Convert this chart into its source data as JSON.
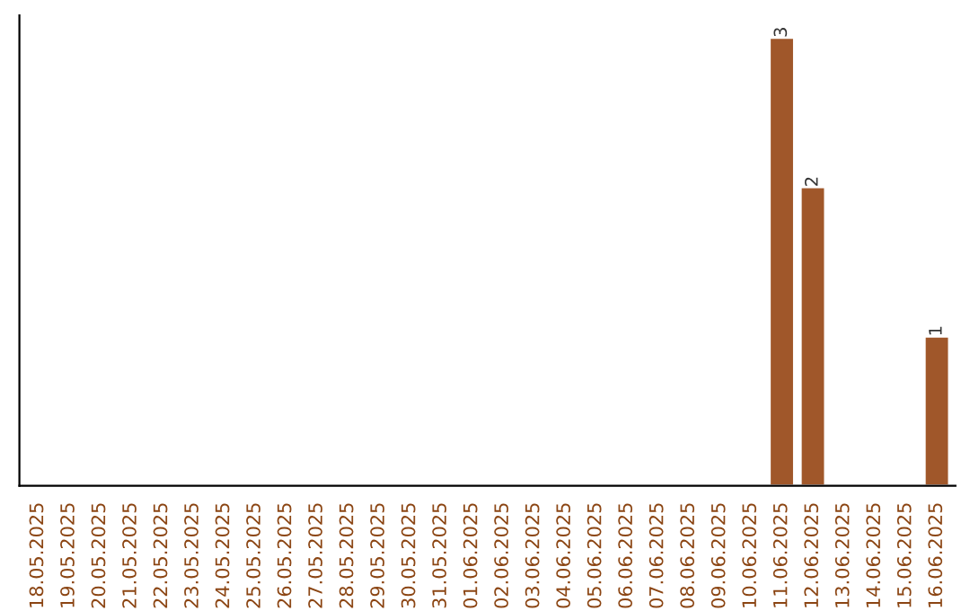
{
  "chart_data": {
    "type": "bar",
    "categories": [
      "18.05.2025",
      "19.05.2025",
      "20.05.2025",
      "21.05.2025",
      "22.05.2025",
      "23.05.2025",
      "24.05.2025",
      "25.05.2025",
      "26.05.2025",
      "27.05.2025",
      "28.05.2025",
      "29.05.2025",
      "30.05.2025",
      "31.05.2025",
      "01.06.2025",
      "02.06.2025",
      "03.06.2025",
      "04.06.2025",
      "05.06.2025",
      "06.06.2025",
      "07.06.2025",
      "08.06.2025",
      "09.06.2025",
      "10.06.2025",
      "11.06.2025",
      "12.06.2025",
      "13.06.2025",
      "14.06.2025",
      "15.06.2025",
      "16.06.2025"
    ],
    "values": [
      null,
      null,
      null,
      null,
      null,
      null,
      null,
      null,
      null,
      null,
      null,
      null,
      null,
      null,
      null,
      null,
      null,
      null,
      null,
      null,
      null,
      null,
      null,
      null,
      3,
      2,
      null,
      null,
      null,
      1
    ],
    "data_labels": true,
    "color": "#a0572a",
    "tick_labels": "x",
    "grid": false,
    "legend": false
  }
}
